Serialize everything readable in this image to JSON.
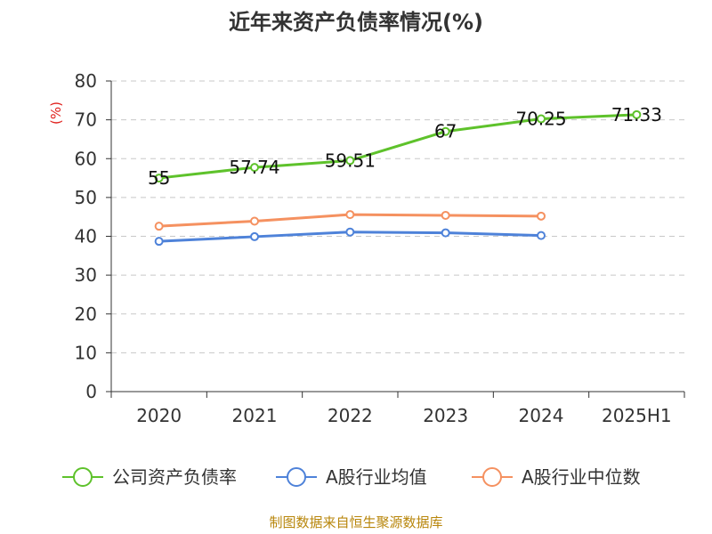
{
  "chart_data": {
    "type": "line",
    "title": "近年来资产负债率情况(%)",
    "ylabel": "(%)",
    "xlabel": "",
    "categories": [
      "2020",
      "2021",
      "2022",
      "2023",
      "2024",
      "2025H1"
    ],
    "ylim": [
      0,
      80
    ],
    "yticks": [
      0,
      10,
      20,
      30,
      40,
      50,
      60,
      70,
      80
    ],
    "grid": true,
    "legend_position": "bottom",
    "series": [
      {
        "name": "公司资产负债率",
        "color": "#5ec22b",
        "values": [
          55,
          57.74,
          59.51,
          67,
          70.25,
          71.33
        ],
        "data_labels": [
          "55",
          "57.74",
          "59.51",
          "67",
          "70.25",
          "71.33"
        ]
      },
      {
        "name": "A股行业均值",
        "color": "#4e82d9",
        "values": [
          38.7,
          39.9,
          41.1,
          40.9,
          40.2,
          null
        ],
        "data_labels": []
      },
      {
        "name": "A股行业中位数",
        "color": "#f59160",
        "values": [
          42.6,
          43.9,
          45.6,
          45.4,
          45.2,
          null
        ],
        "data_labels": []
      }
    ]
  },
  "source": "制图数据来自恒生聚源数据库"
}
